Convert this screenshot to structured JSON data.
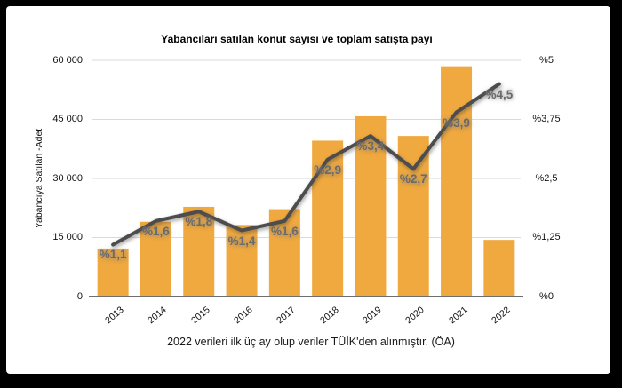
{
  "frame": {
    "background": "#000000",
    "panel_background": "#ffffff"
  },
  "chart_data": {
    "type": "combo-bar-line",
    "title": "Yabancıları satılan konut sayısı ve toplam satışta payı",
    "caption": "2022 verileri ilk üç ay olup veriler TÜİK'den alınmıştır. (ÖA)",
    "categories": [
      "2013",
      "2014",
      "2015",
      "2016",
      "2017",
      "2018",
      "2019",
      "2020",
      "2021",
      "2022"
    ],
    "bar_series": {
      "name": "Yabancıya Satılan -Adet",
      "axis": "left",
      "color": "#F0A93F",
      "values": [
        12200,
        19000,
        22800,
        18200,
        22200,
        39600,
        45800,
        40800,
        58500,
        14400
      ]
    },
    "line_series": {
      "name": "toplam satışta payı",
      "axis": "right",
      "color": "#4D4D4D",
      "values_percent": [
        1.1,
        1.6,
        1.8,
        1.4,
        1.6,
        2.9,
        3.4,
        2.7,
        3.9,
        4.5
      ],
      "point_labels": [
        "%1,1",
        "%1,6",
        "%1,8",
        "%1,4",
        "%1,6",
        "%2,9",
        "%3,4",
        "%2,7",
        "%3,9",
        "%4,5"
      ]
    },
    "left_axis": {
      "title": "Yabancıya Satılan -Adet",
      "min": 0,
      "max": 60000,
      "tick_labels": [
        "0",
        "15 000",
        "30 000",
        "45 000",
        "60 000"
      ]
    },
    "right_axis": {
      "min": 0,
      "max": 5,
      "tick_labels": [
        "%0",
        "%1,25",
        "%2,5",
        "%3,75",
        "%5"
      ]
    },
    "grid": true,
    "legend": "none",
    "grid_color": "#dadada",
    "baseline_color": "#6e6e6e"
  }
}
